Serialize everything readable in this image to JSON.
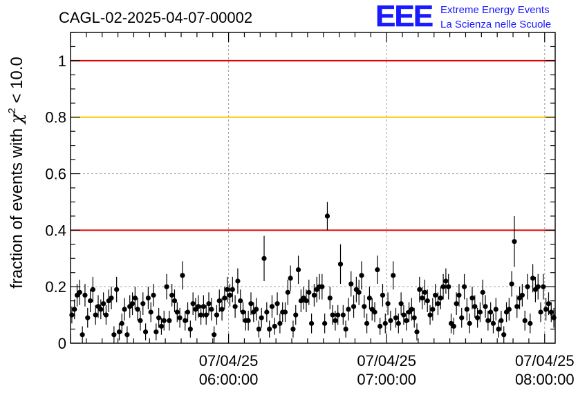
{
  "header": {
    "title": "CAGL-02-2025-04-07-00002",
    "logo_letters": "EEE",
    "logo_line1": "Extreme Energy Events",
    "logo_line2": "La Scienza nelle Scuole"
  },
  "colors": {
    "red_line": "#e00000",
    "orange_line": "#ffc800",
    "logo_blue": "#1a1aff",
    "grid": "#a0a0a0",
    "marker": "#000000"
  },
  "chart_data": {
    "type": "scatter",
    "title": "CAGL-02-2025-04-07-00002",
    "ylabel_prefix": "fraction of events with ",
    "ylabel_symbol": "χ",
    "ylabel_sup": "2",
    "ylabel_suffix": " < 10.0",
    "ylim": [
      0,
      1.1
    ],
    "yticks": [
      0,
      0.2,
      0.4,
      0.6,
      0.8,
      1
    ],
    "ytick_labels": [
      "0",
      "0.2",
      "0.4",
      "0.6",
      "0.8",
      "1"
    ],
    "x_unit": "minutes since 05:00 on 07/04/25",
    "xlim_minutes": [
      0,
      184
    ],
    "xticks": [
      {
        "minute": 60,
        "date": "07/04/25",
        "time": "06:00:00"
      },
      {
        "minute": 120,
        "date": "07/04/25",
        "time": "07:00:00"
      },
      {
        "minute": 180,
        "date": "07/04/25",
        "time": "08:00:00"
      }
    ],
    "grid": true,
    "reference_lines": [
      {
        "y": 1.0,
        "color": "#e00000"
      },
      {
        "y": 0.8,
        "color": "#ffc800"
      },
      {
        "y": 0.4,
        "color": "#e00000"
      }
    ],
    "series": [
      {
        "values": [
          0.1,
          0.12,
          0.17,
          0.18,
          0.03,
          0.17,
          0.09,
          0.15,
          0.19,
          0.1,
          0.13,
          0.12,
          0.14,
          0.1,
          0.15,
          0.16,
          0.03,
          0.19,
          0.04,
          0.07,
          0.12,
          0.03,
          0.13,
          0.14,
          0.16,
          0.12,
          0.08,
          0.14,
          0.04,
          0.16,
          0.11,
          0.17,
          0.04,
          0.09,
          0.06,
          0.08,
          0.2,
          0.08,
          0.17,
          0.15,
          0.11,
          0.09,
          0.24,
          0.08,
          0.11,
          0.05,
          0.14,
          0.12,
          0.13,
          0.1,
          0.13,
          0.1,
          0.14,
          0.12,
          0.03,
          0.1,
          0.15,
          0.12,
          0.16,
          0.19,
          0.17,
          0.19,
          0.13,
          0.22,
          0.15,
          0.11,
          0.08,
          0.08,
          0.14,
          0.11,
          0.12,
          0.05,
          0.09,
          0.3,
          0.11,
          0.05,
          0.13,
          0.06,
          0.14,
          0.07,
          0.11,
          0.11,
          0.18,
          0.23,
          0.05,
          0.1,
          0.26,
          0.15,
          0.16,
          0.15,
          0.18,
          0.07,
          0.17,
          0.19,
          0.2,
          0.2,
          0.07,
          0.45,
          0.16,
          0.1,
          0.08,
          0.1,
          0.28,
          0.1,
          0.05,
          0.12,
          0.21,
          0.13,
          0.19,
          0.18,
          0.24,
          0.13,
          0.07,
          0.16,
          0.12,
          0.11,
          0.26,
          0.06,
          0.17,
          0.07,
          0.14,
          0.08,
          0.24,
          0.09,
          0.07,
          0.14,
          0.1,
          0.08,
          0.11,
          0.12,
          0.09,
          0.04,
          0.19,
          0.16,
          0.18,
          0.15,
          0.1,
          0.12,
          0.17,
          0.14,
          0.16,
          0.2,
          0.22,
          0.2,
          0.07,
          0.06,
          0.14,
          0.17,
          0.09,
          0.2,
          0.12,
          0.07,
          0.16,
          0.13,
          0.09,
          0.11,
          0.18,
          0.13,
          0.08,
          0.11,
          0.07,
          0.12,
          0.05,
          0.08,
          0.03,
          0.11,
          0.12,
          0.21,
          0.36,
          0.13,
          0.16,
          0.17,
          0.08,
          0.2,
          0.07,
          0.23,
          0.19,
          0.2,
          0.11,
          0.2,
          0.12,
          0.14,
          0.11,
          0.09
        ],
        "errors": [
          0.03,
          0.035,
          0.04,
          0.045,
          0.03,
          0.04,
          0.035,
          0.04,
          0.045,
          0.035,
          0.04,
          0.035,
          0.04,
          0.035,
          0.04,
          0.04,
          0.03,
          0.045,
          0.03,
          0.035,
          0.04,
          0.03,
          0.04,
          0.04,
          0.04,
          0.04,
          0.035,
          0.04,
          0.03,
          0.04,
          0.035,
          0.04,
          0.03,
          0.035,
          0.03,
          0.035,
          0.045,
          0.035,
          0.04,
          0.04,
          0.035,
          0.035,
          0.05,
          0.035,
          0.035,
          0.03,
          0.04,
          0.04,
          0.04,
          0.035,
          0.04,
          0.035,
          0.04,
          0.04,
          0.03,
          0.035,
          0.04,
          0.04,
          0.04,
          0.045,
          0.04,
          0.045,
          0.04,
          0.045,
          0.04,
          0.035,
          0.035,
          0.035,
          0.04,
          0.035,
          0.04,
          0.03,
          0.035,
          0.08,
          0.035,
          0.03,
          0.04,
          0.03,
          0.04,
          0.035,
          0.035,
          0.035,
          0.045,
          0.045,
          0.03,
          0.035,
          0.05,
          0.04,
          0.04,
          0.04,
          0.045,
          0.035,
          0.04,
          0.045,
          0.045,
          0.045,
          0.035,
          0.05,
          0.04,
          0.035,
          0.035,
          0.035,
          0.07,
          0.035,
          0.03,
          0.04,
          0.045,
          0.04,
          0.045,
          0.045,
          0.05,
          0.04,
          0.035,
          0.04,
          0.04,
          0.035,
          0.05,
          0.03,
          0.04,
          0.035,
          0.04,
          0.035,
          0.05,
          0.035,
          0.035,
          0.04,
          0.035,
          0.035,
          0.035,
          0.04,
          0.035,
          0.03,
          0.045,
          0.04,
          0.045,
          0.04,
          0.035,
          0.04,
          0.04,
          0.04,
          0.04,
          0.045,
          0.045,
          0.045,
          0.035,
          0.03,
          0.04,
          0.04,
          0.035,
          0.045,
          0.04,
          0.035,
          0.04,
          0.04,
          0.035,
          0.035,
          0.045,
          0.04,
          0.035,
          0.035,
          0.035,
          0.04,
          0.03,
          0.035,
          0.03,
          0.035,
          0.04,
          0.045,
          0.09,
          0.04,
          0.04,
          0.04,
          0.035,
          0.045,
          0.035,
          0.05,
          0.045,
          0.045,
          0.035,
          0.045,
          0.04,
          0.04,
          0.035,
          0.035
        ]
      }
    ]
  }
}
